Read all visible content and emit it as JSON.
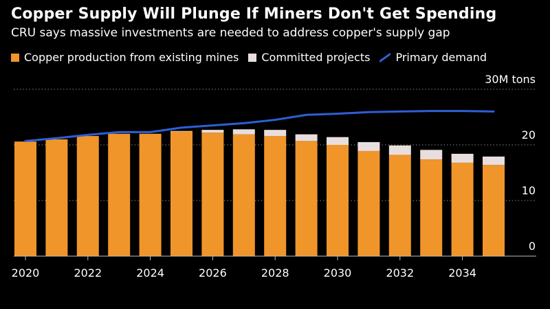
{
  "title": "Copper Supply Will Plunge If Miners Don't Get Spending",
  "subtitle": "CRU says massive investments are needed to address copper's supply gap",
  "colors": {
    "existing": "#f0952a",
    "committed": "#e9dede",
    "demand": "#2e5fd6",
    "grid": "#8a8a8a",
    "axis": "#bfbfbf"
  },
  "chart_data": {
    "type": "bar",
    "stacked": true,
    "categories": [
      "2020",
      "2021",
      "2022",
      "2023",
      "2024",
      "2025",
      "2026",
      "2027",
      "2028",
      "2029",
      "2030",
      "2031",
      "2032",
      "2033",
      "2034",
      "2035"
    ],
    "series": [
      {
        "name": "Copper production from existing mines",
        "kind": "bar",
        "values": [
          20.6,
          21.0,
          21.6,
          22.0,
          22.0,
          22.4,
          22.2,
          21.9,
          21.6,
          20.7,
          20.0,
          18.9,
          18.2,
          17.4,
          16.8,
          16.4
        ]
      },
      {
        "name": "Committed projects",
        "kind": "bar",
        "values": [
          0.0,
          0.0,
          0.0,
          0.0,
          0.0,
          0.1,
          0.5,
          0.9,
          1.1,
          1.2,
          1.4,
          1.6,
          1.7,
          1.7,
          1.6,
          1.5
        ]
      },
      {
        "name": "Primary demand",
        "kind": "line",
        "values": [
          20.7,
          21.2,
          21.8,
          22.3,
          22.3,
          23.1,
          23.5,
          23.9,
          24.5,
          25.4,
          25.6,
          25.9,
          26.0,
          26.1,
          26.1,
          26.0
        ]
      }
    ],
    "xticks": [
      "2020",
      "2022",
      "2024",
      "2026",
      "2028",
      "2030",
      "2032",
      "2034"
    ],
    "yticks": [
      {
        "value": 0,
        "label": "0"
      },
      {
        "value": 10,
        "label": "10"
      },
      {
        "value": 20,
        "label": "20"
      },
      {
        "value": 30,
        "label": "30M tons"
      }
    ],
    "ylim": [
      0,
      30
    ],
    "grid": true,
    "legend_position": "top-left"
  }
}
